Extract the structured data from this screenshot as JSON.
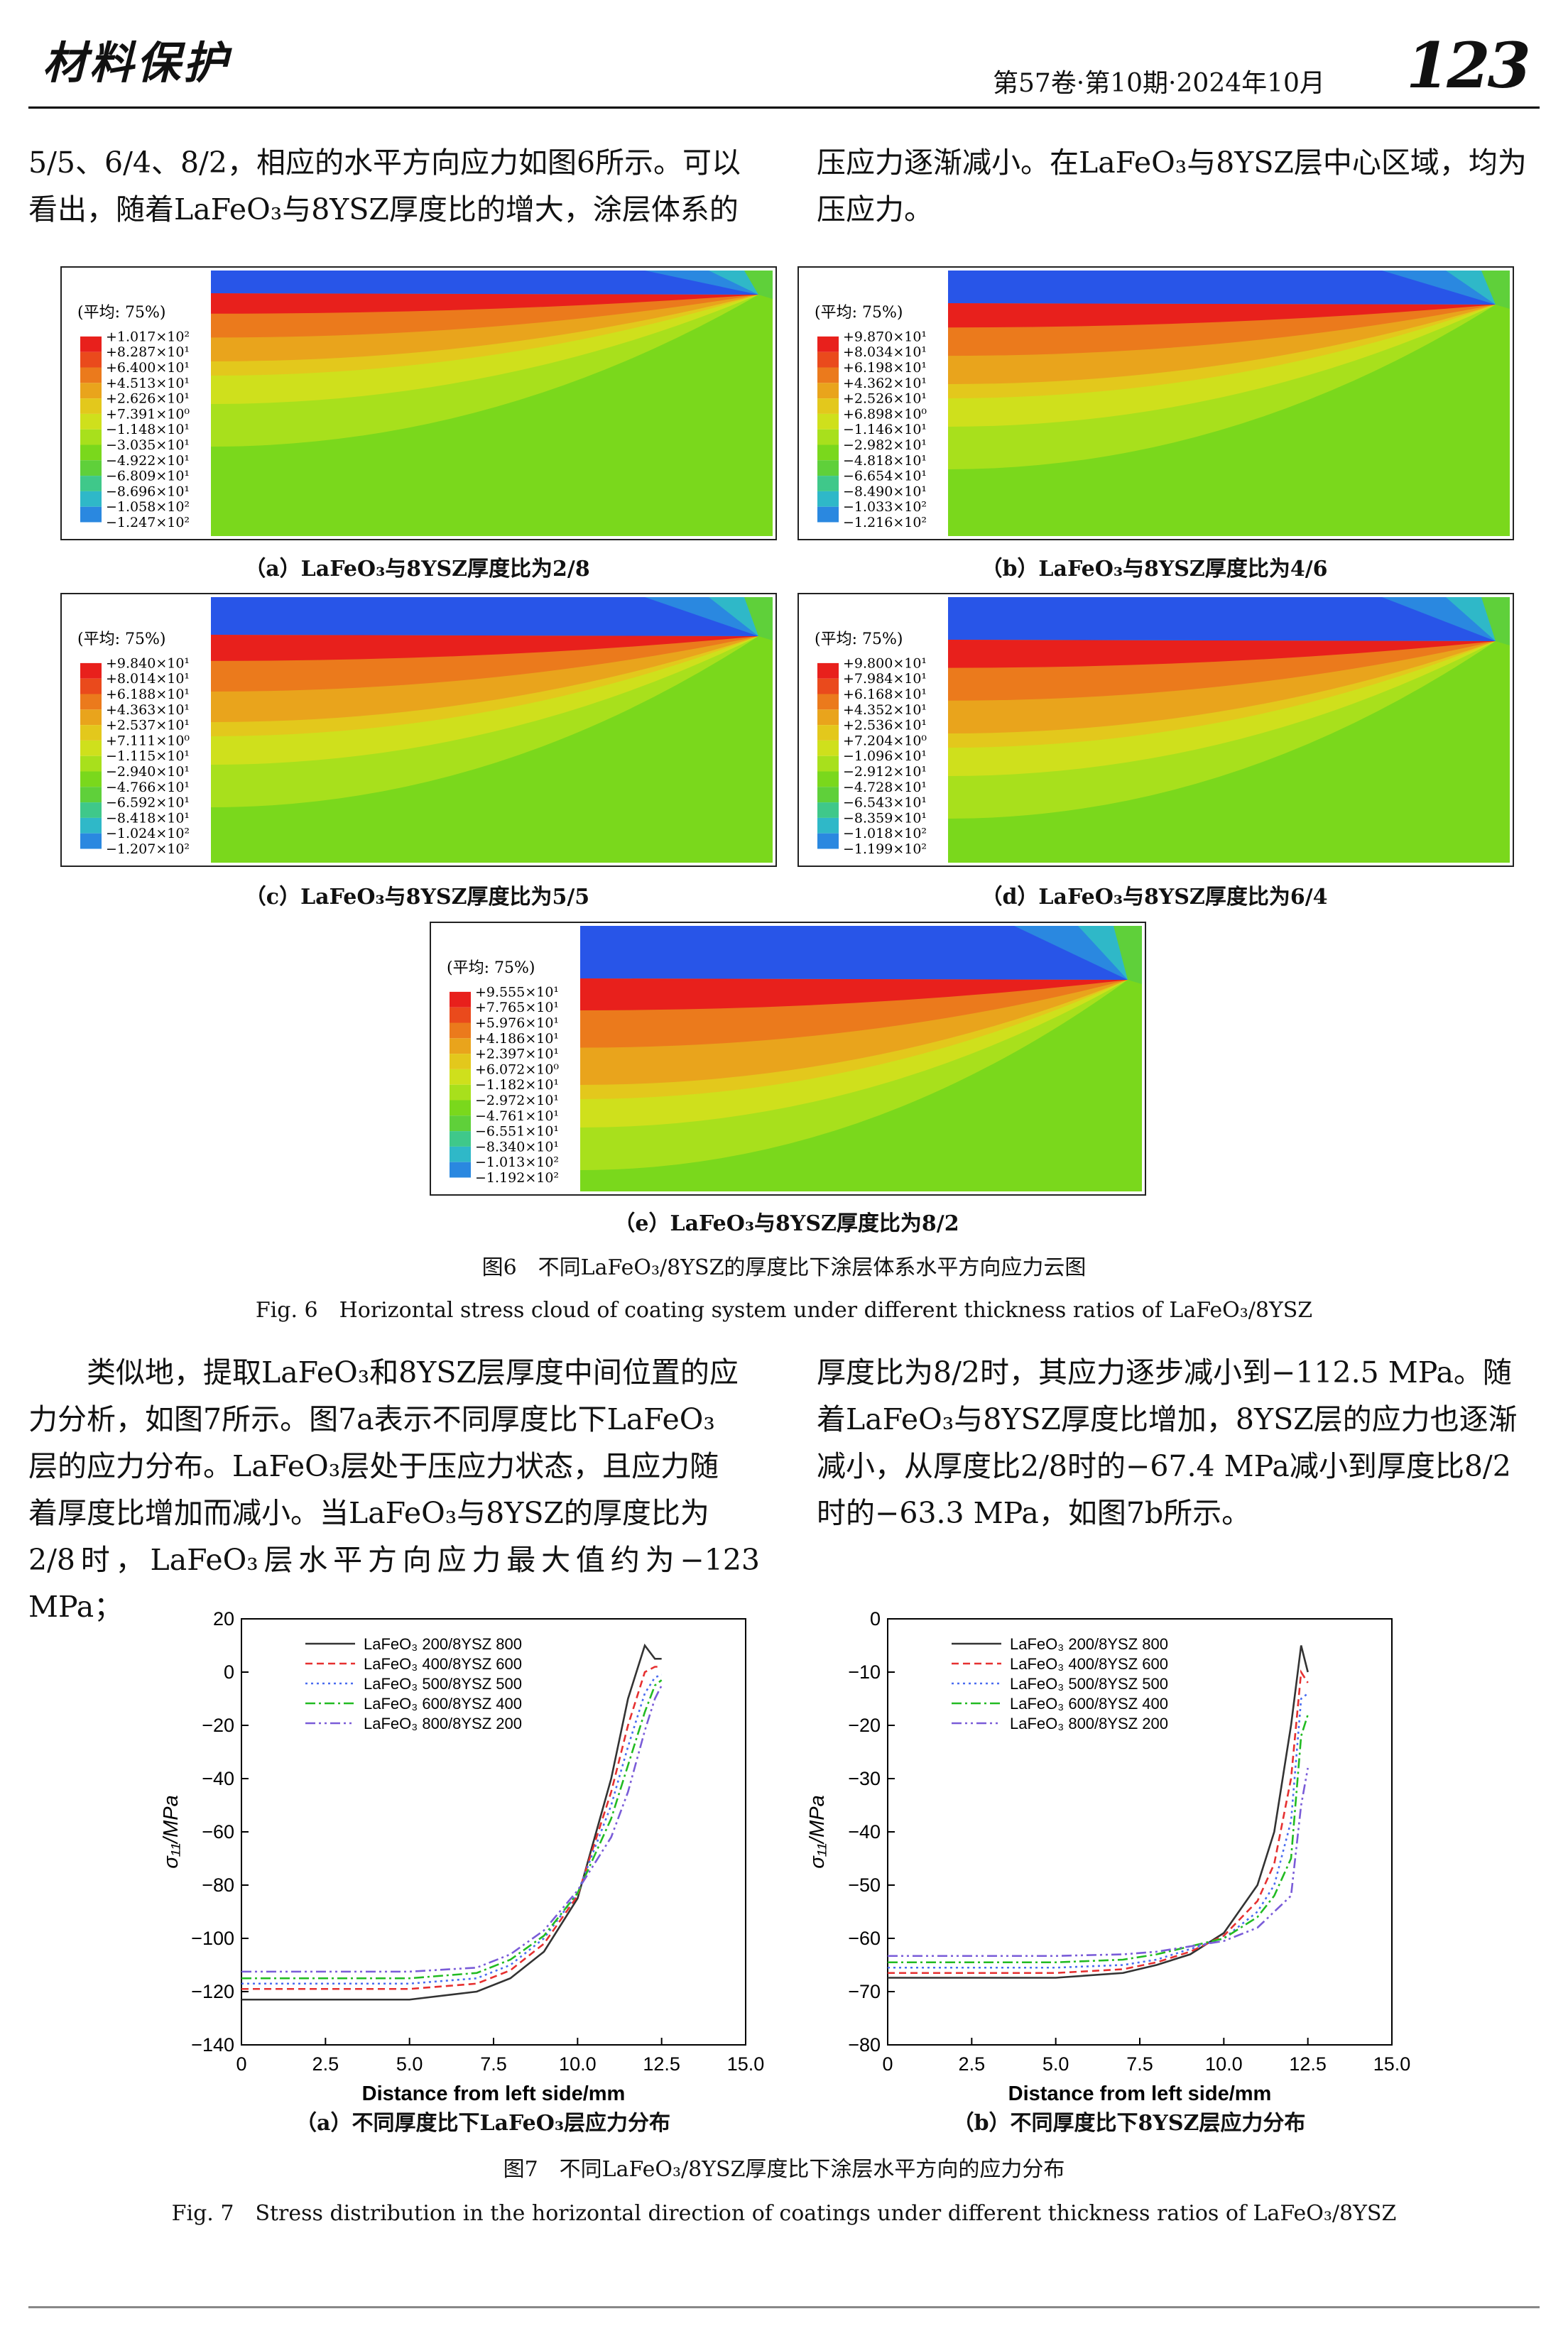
{
  "header": {
    "journal": "材料保护",
    "issue": "第57卷·第10期·2024年10月",
    "page_number": "123"
  },
  "top_text": {
    "left_lines": [
      "5/5、6/4、8/2，相应的水平方向应力如图6所示。可以",
      "看出，随着LaFeO₃与8YSZ厚度比的增大，涂层体系的"
    ],
    "right_lines": [
      "压应力逐渐减小。在LaFeO₃与8YSZ层中心区域，均为",
      "压应力。"
    ]
  },
  "fig6": {
    "legend_title": "(平均: 75%)",
    "panels": [
      {
        "caption": "（a）LaFeO₃与8YSZ厚度比为2/8",
        "values": [
          "+1.017×10²",
          "+8.287×10¹",
          "+6.400×10¹",
          "+4.513×10¹",
          "+2.626×10¹",
          "+7.391×10⁰",
          "−1.148×10¹",
          "−3.035×10¹",
          "−4.922×10¹",
          "−6.809×10¹",
          "−8.696×10¹",
          "−1.058×10²",
          "−1.247×10²"
        ]
      },
      {
        "caption": "（b）LaFeO₃与8YSZ厚度比为4/6",
        "values": [
          "+9.870×10¹",
          "+8.034×10¹",
          "+6.198×10¹",
          "+4.362×10¹",
          "+2.526×10¹",
          "+6.898×10⁰",
          "−1.146×10¹",
          "−2.982×10¹",
          "−4.818×10¹",
          "−6.654×10¹",
          "−8.490×10¹",
          "−1.033×10²",
          "−1.216×10²"
        ]
      },
      {
        "caption": "（c）LaFeO₃与8YSZ厚度比为5/5",
        "values": [
          "+9.840×10¹",
          "+8.014×10¹",
          "+6.188×10¹",
          "+4.363×10¹",
          "+2.537×10¹",
          "+7.111×10⁰",
          "−1.115×10¹",
          "−2.940×10¹",
          "−4.766×10¹",
          "−6.592×10¹",
          "−8.418×10¹",
          "−1.024×10²",
          "−1.207×10²"
        ]
      },
      {
        "caption": "（d）LaFeO₃与8YSZ厚度比为6/4",
        "values": [
          "+9.800×10¹",
          "+7.984×10¹",
          "+6.168×10¹",
          "+4.352×10¹",
          "+2.536×10¹",
          "+7.204×10⁰",
          "−1.096×10¹",
          "−2.912×10¹",
          "−4.728×10¹",
          "−6.543×10¹",
          "−8.359×10¹",
          "−1.018×10²",
          "−1.199×10²"
        ]
      },
      {
        "caption": "（e）LaFeO₃与8YSZ厚度比为8/2",
        "values": [
          "+9.555×10¹",
          "+7.765×10¹",
          "+5.976×10¹",
          "+4.186×10¹",
          "+2.397×10¹",
          "+6.072×10⁰",
          "−1.182×10¹",
          "−2.972×10¹",
          "−4.761×10¹",
          "−6.551×10¹",
          "−8.340×10¹",
          "−1.013×10²",
          "−1.192×10²"
        ]
      }
    ],
    "caption_cn": "图6　不同LaFeO₃/8YSZ的厚度比下涂层体系水平方向应力云图",
    "caption_en": "Fig. 6　Horizontal stress cloud of coating system under different thickness ratios of LaFeO₃/8YSZ"
  },
  "mid_text": {
    "left_lines": [
      "类似地，提取LaFeO₃和8YSZ层厚度中间位置的应",
      "力分析，如图7所示。图7a表示不同厚度比下LaFeO₃",
      "层的应力分布。LaFeO₃层处于压应力状态，且应力随",
      "着厚度比增加而减小。当LaFeO₃与8YSZ的厚度比为",
      "2/8时，LaFeO₃层水平方向应力最大值约为−123 MPa；"
    ],
    "right_lines": [
      "厚度比为8/2时，其应力逐步减小到−112.5 MPa。随",
      "着LaFeO₃与8YSZ厚度比增加，8YSZ层的应力也逐渐",
      "减小，从厚度比2/8时的−67.4 MPa减小到厚度比8/2",
      "时的−63.3 MPa，如图7b所示。"
    ]
  },
  "chart_data": [
    {
      "type": "line",
      "caption": "（a）不同厚度比下LaFeO₃层应力分布",
      "xlabel": "Distance from left side/mm",
      "ylabel": "σ₁₁/MPa",
      "xlim": [
        0,
        15
      ],
      "ylim": [
        -140,
        20
      ],
      "xticks": [
        "0",
        "2.5",
        "5.0",
        "7.5",
        "10.0",
        "12.5",
        "15.0"
      ],
      "yticks": [
        "20",
        "0",
        "−20",
        "−40",
        "−60",
        "−80",
        "−100",
        "−120",
        "−140"
      ],
      "legend_position": "top-right",
      "series": [
        {
          "name": "LaFeO₃ 200/8YSZ 800",
          "color": "#333333",
          "dash": "",
          "x": [
            0,
            5,
            7,
            8,
            9,
            10,
            11,
            11.5,
            12,
            12.3,
            12.5
          ],
          "y": [
            -123,
            -123,
            -120,
            -115,
            -105,
            -85,
            -40,
            -10,
            10,
            5,
            5
          ]
        },
        {
          "name": "LaFeO₃ 400/8YSZ 600",
          "color": "#e63030",
          "dash": "10,6",
          "x": [
            0,
            5,
            7,
            8,
            9,
            10,
            11,
            11.5,
            12,
            12.3,
            12.5
          ],
          "y": [
            -119,
            -119,
            -117,
            -112,
            -102,
            -84,
            -45,
            -20,
            0,
            2,
            2
          ]
        },
        {
          "name": "LaFeO₃ 500/8YSZ 500",
          "color": "#4a6cf0",
          "dash": "3,5",
          "x": [
            0,
            5,
            7,
            8,
            9,
            10,
            11,
            11.5,
            12,
            12.3,
            12.5
          ],
          "y": [
            -117,
            -117,
            -115,
            -110,
            -100,
            -83,
            -50,
            -28,
            -8,
            -2,
            -1
          ]
        },
        {
          "name": "LaFeO₃ 600/8YSZ 400",
          "color": "#22bb22",
          "dash": "14,5,3,5",
          "x": [
            0,
            5,
            7,
            8,
            9,
            10,
            11,
            11.5,
            12,
            12.3,
            12.5
          ],
          "y": [
            -115,
            -115,
            -113,
            -108,
            -99,
            -83,
            -55,
            -35,
            -15,
            -5,
            -3
          ]
        },
        {
          "name": "LaFeO₃ 800/8YSZ 200",
          "color": "#7a5cd8",
          "dash": "14,5,3,5,3,5",
          "x": [
            0,
            5,
            7,
            8,
            9,
            10,
            11,
            11.5,
            12,
            12.3,
            12.5
          ],
          "y": [
            -112.5,
            -112.5,
            -111,
            -106,
            -97,
            -82,
            -62,
            -45,
            -22,
            -10,
            -5
          ]
        }
      ]
    },
    {
      "type": "line",
      "caption": "（b）不同厚度比下8YSZ层应力分布",
      "xlabel": "Distance from left side/mm",
      "ylabel": "σ₁₁/MPa",
      "xlim": [
        0,
        15
      ],
      "ylim": [
        -80,
        0
      ],
      "xticks": [
        "0",
        "2.5",
        "5.0",
        "7.5",
        "10.0",
        "12.5",
        "15.0"
      ],
      "yticks": [
        "0",
        "−10",
        "−20",
        "−30",
        "−40",
        "−50",
        "−60",
        "−70",
        "−80"
      ],
      "legend_position": "top-right",
      "series": [
        {
          "name": "LaFeO₃ 200/8YSZ 800",
          "color": "#333333",
          "dash": "",
          "x": [
            0,
            5,
            7,
            8,
            9,
            10,
            11,
            11.5,
            12,
            12.3,
            12.5
          ],
          "y": [
            -67.4,
            -67.4,
            -66.5,
            -65,
            -63,
            -59,
            -50,
            -40,
            -20,
            -5,
            -10
          ]
        },
        {
          "name": "LaFeO₃ 400/8YSZ 600",
          "color": "#e63030",
          "dash": "10,6",
          "x": [
            0,
            5,
            7,
            8,
            9,
            10,
            11,
            11.5,
            12,
            12.3,
            12.5
          ],
          "y": [
            -66.5,
            -66.5,
            -65.8,
            -64.5,
            -62.5,
            -59.5,
            -53,
            -46,
            -30,
            -10,
            -12
          ]
        },
        {
          "name": "LaFeO₃ 500/8YSZ 500",
          "color": "#4a6cf0",
          "dash": "3,5",
          "x": [
            0,
            5,
            7,
            8,
            9,
            10,
            11,
            11.5,
            12,
            12.3,
            12.5
          ],
          "y": [
            -65.5,
            -65.5,
            -65,
            -64,
            -62,
            -60,
            -55,
            -50,
            -38,
            -15,
            -14
          ]
        },
        {
          "name": "LaFeO₃ 600/8YSZ 400",
          "color": "#22bb22",
          "dash": "14,5,3,5",
          "x": [
            0,
            5,
            7,
            8,
            9,
            10,
            11,
            11.5,
            12,
            12.3,
            12.5
          ],
          "y": [
            -64.5,
            -64.5,
            -64,
            -63,
            -61.5,
            -60,
            -56,
            -52,
            -45,
            -22,
            -18
          ]
        },
        {
          "name": "LaFeO₃ 800/8YSZ 200",
          "color": "#7a5cd8",
          "dash": "14,5,3,5,3,5",
          "x": [
            0,
            5,
            7,
            8,
            9,
            10,
            11,
            11.5,
            12,
            12.3,
            12.5
          ],
          "y": [
            -63.3,
            -63.3,
            -63,
            -62.5,
            -61.5,
            -60.5,
            -58,
            -55,
            -52,
            -35,
            -28
          ]
        }
      ]
    }
  ],
  "fig7": {
    "caption_cn": "图7　不同LaFeO₃/8YSZ厚度比下涂层水平方向的应力分布",
    "caption_en": "Fig. 7　Stress distribution in the horizontal direction of coatings under different thickness ratios of LaFeO₃/8YSZ"
  },
  "colormap": [
    "#e8201c",
    "#ea4a1c",
    "#eb7a1c",
    "#e9a41c",
    "#e3c81c",
    "#cfe01c",
    "#a8e01c",
    "#7ad81c",
    "#5fd03a",
    "#3fc88a",
    "#2fb8c8",
    "#2a88e0",
    "#2855e8"
  ]
}
